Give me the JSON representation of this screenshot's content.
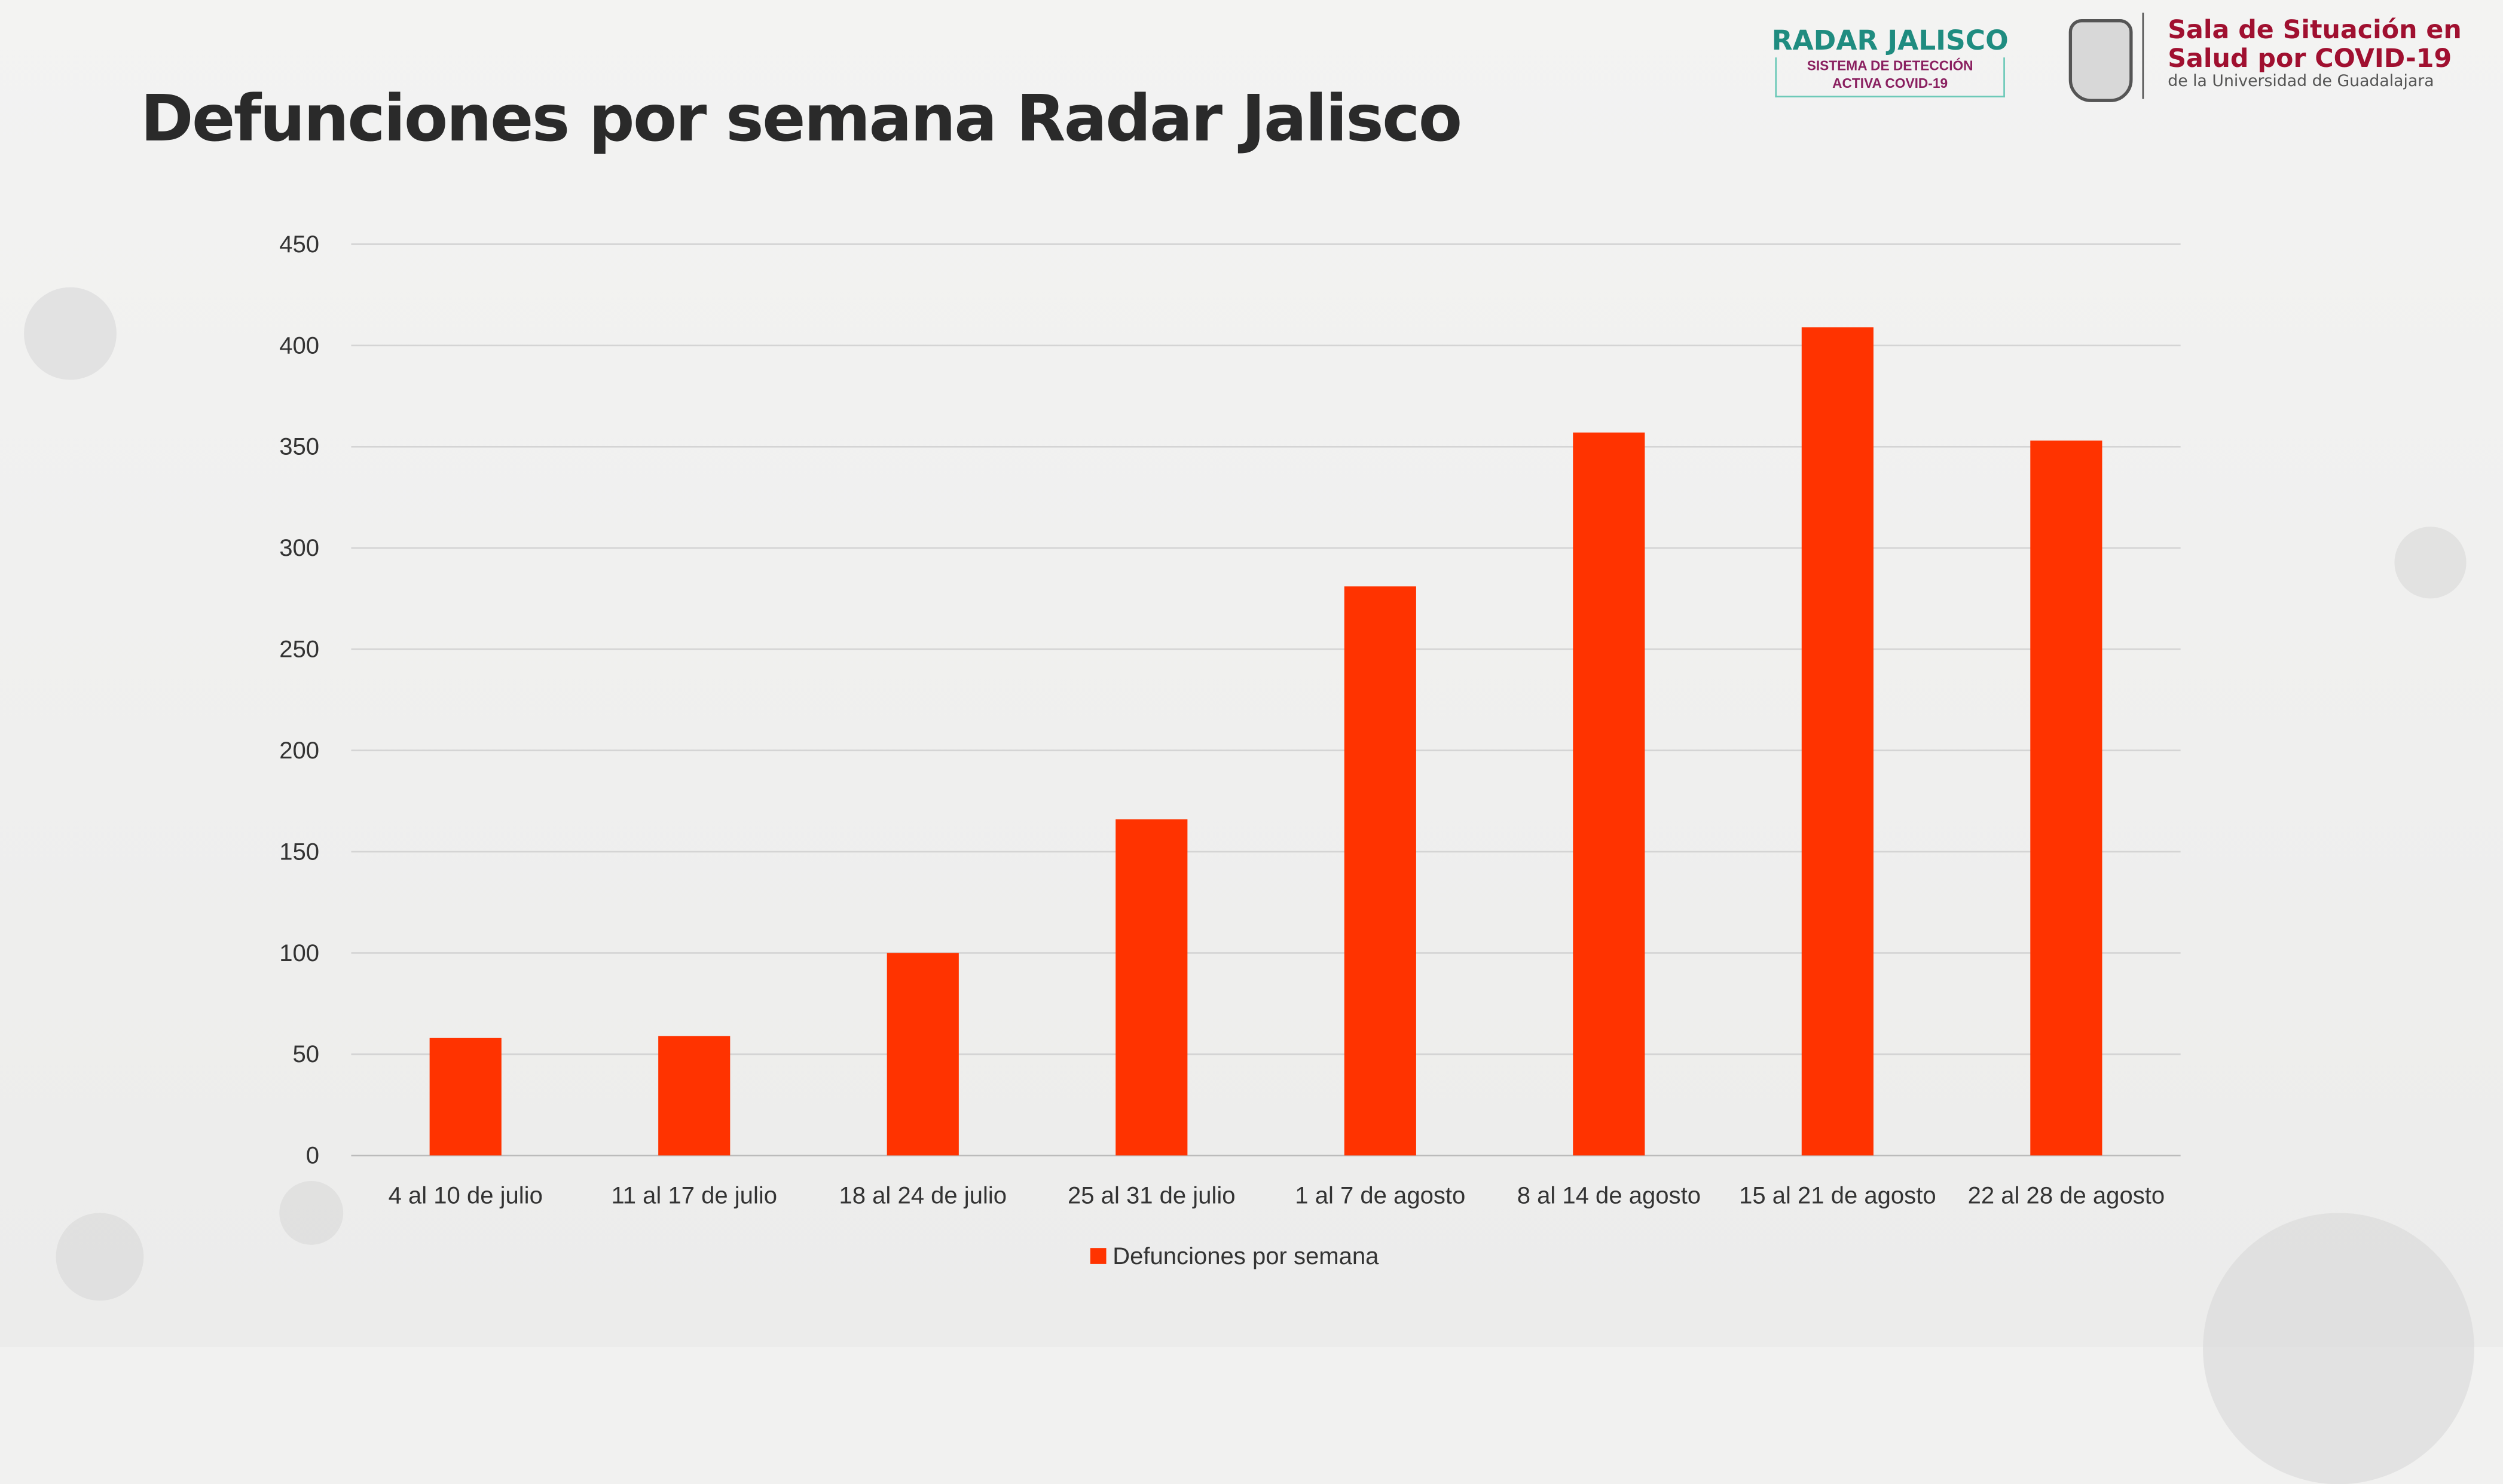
{
  "header": {
    "title": "Defunciones por semana Radar Jalisco",
    "radar_logo": {
      "name": "RADAR JALISCO",
      "line1": "SISTEMA DE DETECCIÓN",
      "line2": "ACTIVA COVID-19"
    },
    "sala_logo": {
      "line1": "Sala de Situación en",
      "line2": "Salud por COVID-19",
      "line3": "de la Universidad de Guadalajara"
    }
  },
  "chart_data": {
    "type": "bar",
    "title": "Defunciones por semana Radar Jalisco",
    "categories": [
      "4 al 10 de julio",
      "11 al 17 de julio",
      "18 al 24 de julio",
      "25 al 31 de julio",
      "1 al 7 de agosto",
      "8 al 14 de agosto",
      "15 al 21 de agosto",
      "22 al 28 de agosto"
    ],
    "series": [
      {
        "name": "Defunciones por semana",
        "color": "#ff3300",
        "values": [
          58,
          59,
          100,
          166,
          281,
          357,
          409,
          353
        ]
      }
    ],
    "yticks": [
      0,
      50,
      100,
      150,
      200,
      250,
      300,
      350,
      400,
      450
    ],
    "ylim": [
      0,
      450
    ],
    "grid": true,
    "legend": "bottom-center",
    "xlabel": "",
    "ylabel": ""
  }
}
